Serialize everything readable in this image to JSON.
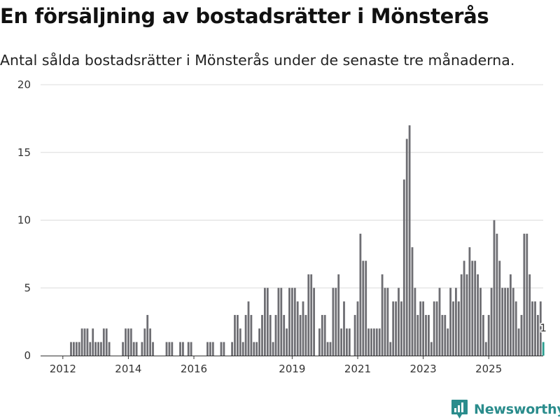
{
  "title": "En försäljning av bostadsrätter i Mönsterås",
  "subtitle": "Antal sålda bostadsrätter i Mönsterås under de senaste tre månaderna.",
  "brand": {
    "name": "Newsworthy",
    "icon": "newsworthy-logo-icon",
    "color": "#2a8c8c"
  },
  "chart_data": {
    "type": "bar",
    "title": "En försäljning av bostadsrätter i Mönsterås",
    "subtitle": "Antal sålda bostadsrätter i Mönsterås under de senaste tre månaderna.",
    "xlabel": "",
    "ylabel": "",
    "ylim": [
      0,
      20
    ],
    "yticks": [
      0,
      5,
      10,
      15,
      20
    ],
    "grid": true,
    "bar_color": "#6e6e73",
    "highlight_color": "#2a9d8f",
    "x_tick_labels": [
      {
        "label": "2012",
        "at_index": 6
      },
      {
        "label": "2014",
        "at_index": 30
      },
      {
        "label": "2016",
        "at_index": 54
      },
      {
        "label": "2019",
        "at_index": 90
      },
      {
        "label": "2021",
        "at_index": 114
      },
      {
        "label": "2023",
        "at_index": 138
      },
      {
        "label": "2025",
        "at_index": 162
      }
    ],
    "highlight_label": "1",
    "values": [
      0,
      0,
      0,
      0,
      0,
      0,
      0,
      0,
      0,
      1,
      1,
      1,
      1,
      2,
      2,
      2,
      1,
      2,
      1,
      1,
      1,
      2,
      2,
      1,
      0,
      0,
      0,
      0,
      1,
      2,
      2,
      2,
      1,
      1,
      0,
      1,
      2,
      3,
      2,
      1,
      0,
      0,
      0,
      0,
      1,
      1,
      1,
      0,
      0,
      1,
      1,
      0,
      1,
      1,
      0,
      0,
      0,
      0,
      0,
      1,
      1,
      1,
      0,
      0,
      1,
      1,
      0,
      0,
      1,
      3,
      3,
      2,
      1,
      3,
      4,
      3,
      1,
      1,
      2,
      3,
      5,
      5,
      3,
      1,
      3,
      5,
      5,
      3,
      2,
      5,
      5,
      5,
      4,
      3,
      4,
      3,
      6,
      6,
      5,
      0,
      2,
      3,
      3,
      1,
      1,
      5,
      5,
      6,
      2,
      4,
      2,
      2,
      0,
      3,
      4,
      9,
      7,
      7,
      2,
      2,
      2,
      2,
      2,
      6,
      5,
      5,
      1,
      4,
      4,
      5,
      4,
      13,
      16,
      17,
      8,
      5,
      3,
      4,
      4,
      3,
      3,
      1,
      4,
      4,
      5,
      3,
      3,
      2,
      5,
      4,
      5,
      4,
      6,
      7,
      6,
      8,
      7,
      7,
      6,
      5,
      3,
      1,
      3,
      5,
      10,
      9,
      7,
      5,
      5,
      5,
      6,
      5,
      4,
      2,
      3,
      9,
      9,
      6,
      4,
      4,
      3,
      4,
      1
    ]
  }
}
